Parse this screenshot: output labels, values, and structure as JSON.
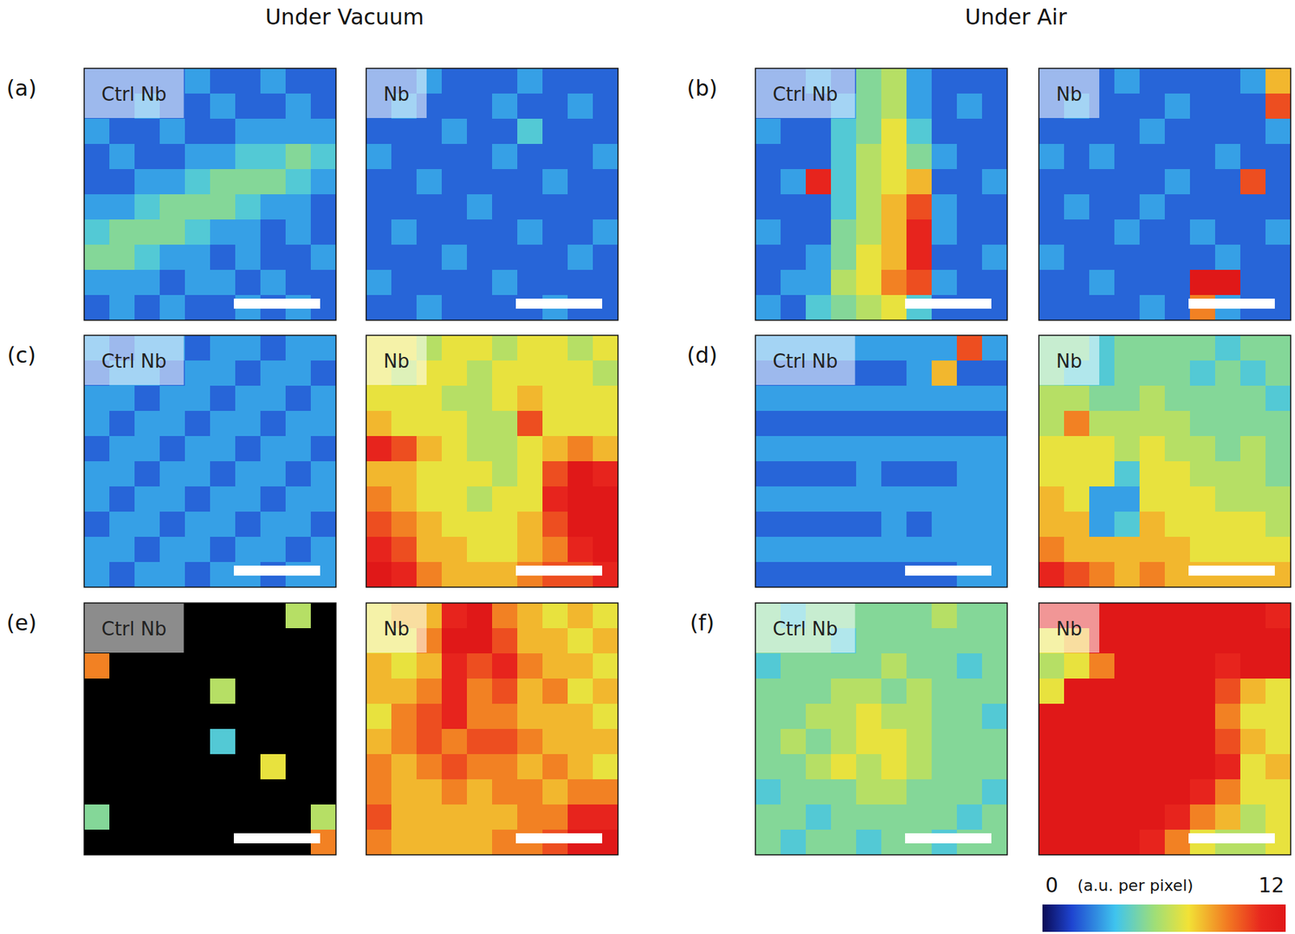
{
  "headings": [
    "Under Vacuum",
    "Under Air"
  ],
  "panel_labels": [
    "(a)",
    "(b)",
    "(c)",
    "(d)",
    "(e)",
    "(f)"
  ],
  "colorbar": {
    "range": [
      0,
      12
    ],
    "ticks": [
      0,
      12
    ],
    "label": "(a.u. per pixel)"
  },
  "chart_data": [
    {
      "type": "heatmap",
      "title": "Ctrl Nb",
      "tick_labels": false,
      "cells": [
        [
          2,
          2,
          2,
          2,
          3,
          2,
          2,
          3,
          2,
          2
        ],
        [
          2,
          2,
          3,
          2,
          2,
          3,
          2,
          2,
          3,
          2
        ],
        [
          3,
          2,
          2,
          3,
          2,
          2,
          3,
          3,
          3,
          3
        ],
        [
          2,
          3,
          2,
          2,
          3,
          3,
          4,
          4,
          5,
          4
        ],
        [
          2,
          2,
          3,
          3,
          4,
          5,
          5,
          5,
          4,
          3
        ],
        [
          3,
          3,
          4,
          5,
          5,
          5,
          4,
          3,
          3,
          2
        ],
        [
          4,
          5,
          5,
          5,
          4,
          3,
          3,
          2,
          3,
          2
        ],
        [
          5,
          5,
          4,
          3,
          3,
          2,
          3,
          2,
          2,
          3
        ],
        [
          3,
          3,
          3,
          2,
          3,
          3,
          2,
          3,
          2,
          2
        ],
        [
          2,
          3,
          2,
          3,
          2,
          2,
          3,
          2,
          3,
          2
        ]
      ]
    },
    {
      "type": "heatmap",
      "title": "Nb",
      "tick_labels": false,
      "cells": [
        [
          2,
          2,
          3,
          2,
          2,
          2,
          3,
          2,
          2,
          2
        ],
        [
          2,
          3,
          2,
          2,
          2,
          3,
          2,
          2,
          3,
          2
        ],
        [
          2,
          2,
          2,
          3,
          2,
          2,
          4,
          2,
          2,
          2
        ],
        [
          3,
          2,
          2,
          2,
          2,
          3,
          2,
          2,
          2,
          3
        ],
        [
          2,
          2,
          3,
          2,
          2,
          2,
          2,
          3,
          2,
          2
        ],
        [
          2,
          2,
          2,
          2,
          3,
          2,
          2,
          2,
          2,
          2
        ],
        [
          2,
          3,
          2,
          2,
          2,
          2,
          3,
          2,
          2,
          3
        ],
        [
          2,
          2,
          2,
          3,
          2,
          2,
          2,
          2,
          3,
          2
        ],
        [
          3,
          2,
          2,
          2,
          2,
          3,
          2,
          2,
          2,
          2
        ],
        [
          2,
          2,
          3,
          2,
          2,
          2,
          2,
          3,
          2,
          2
        ]
      ]
    },
    {
      "type": "heatmap",
      "title": "Ctrl Nb",
      "tick_labels": false,
      "cells": [
        [
          2,
          2,
          3,
          2,
          5,
          6,
          3,
          2,
          2,
          2
        ],
        [
          2,
          2,
          2,
          3,
          5,
          6,
          3,
          2,
          3,
          2
        ],
        [
          3,
          2,
          2,
          4,
          5,
          7,
          4,
          2,
          2,
          2
        ],
        [
          2,
          2,
          2,
          4,
          6,
          7,
          5,
          3,
          2,
          2
        ],
        [
          2,
          3,
          11,
          4,
          6,
          7,
          8,
          2,
          2,
          3
        ],
        [
          2,
          2,
          2,
          4,
          6,
          8,
          10,
          3,
          2,
          2
        ],
        [
          3,
          2,
          2,
          5,
          6,
          8,
          11,
          3,
          2,
          2
        ],
        [
          2,
          2,
          3,
          5,
          7,
          8,
          11,
          2,
          2,
          3
        ],
        [
          2,
          3,
          3,
          6,
          7,
          9,
          10,
          3,
          2,
          2
        ],
        [
          3,
          2,
          4,
          5,
          6,
          7,
          4,
          2,
          2,
          2
        ]
      ]
    },
    {
      "type": "heatmap",
      "title": "Nb",
      "tick_labels": false,
      "cells": [
        [
          2,
          2,
          2,
          3,
          2,
          2,
          2,
          2,
          3,
          8
        ],
        [
          2,
          3,
          2,
          2,
          2,
          3,
          2,
          2,
          2,
          10
        ],
        [
          2,
          2,
          2,
          2,
          3,
          2,
          2,
          2,
          2,
          3
        ],
        [
          3,
          2,
          3,
          2,
          2,
          2,
          2,
          3,
          2,
          2
        ],
        [
          2,
          2,
          2,
          2,
          2,
          3,
          2,
          2,
          10,
          2
        ],
        [
          2,
          3,
          2,
          2,
          3,
          2,
          2,
          2,
          2,
          2
        ],
        [
          2,
          2,
          2,
          3,
          2,
          2,
          3,
          2,
          2,
          3
        ],
        [
          3,
          2,
          2,
          2,
          2,
          2,
          2,
          3,
          2,
          2
        ],
        [
          2,
          2,
          3,
          2,
          2,
          2,
          12,
          12,
          2,
          2
        ],
        [
          2,
          2,
          2,
          2,
          3,
          2,
          9,
          3,
          2,
          2
        ]
      ]
    },
    {
      "type": "heatmap",
      "title": "Ctrl Nb",
      "tick_labels": false,
      "cells": [
        [
          3,
          2,
          3,
          3,
          2,
          3,
          3,
          2,
          3,
          3
        ],
        [
          2,
          3,
          3,
          2,
          3,
          3,
          2,
          3,
          3,
          2
        ],
        [
          3,
          3,
          2,
          3,
          3,
          2,
          3,
          3,
          2,
          3
        ],
        [
          3,
          2,
          3,
          3,
          2,
          3,
          3,
          2,
          3,
          3
        ],
        [
          2,
          3,
          3,
          2,
          3,
          3,
          2,
          3,
          3,
          2
        ],
        [
          3,
          3,
          2,
          3,
          3,
          2,
          3,
          3,
          2,
          3
        ],
        [
          3,
          2,
          3,
          3,
          2,
          3,
          3,
          2,
          3,
          3
        ],
        [
          2,
          3,
          3,
          2,
          3,
          3,
          2,
          3,
          3,
          2
        ],
        [
          3,
          3,
          2,
          3,
          3,
          2,
          3,
          3,
          2,
          3
        ],
        [
          3,
          2,
          3,
          3,
          2,
          3,
          3,
          2,
          3,
          3
        ]
      ]
    },
    {
      "type": "heatmap",
      "title": "Nb",
      "tick_labels": false,
      "cells": [
        [
          7,
          7,
          6,
          7,
          7,
          6,
          7,
          7,
          6,
          7
        ],
        [
          7,
          6,
          7,
          7,
          6,
          7,
          7,
          7,
          7,
          6
        ],
        [
          7,
          7,
          7,
          6,
          6,
          7,
          8,
          7,
          7,
          7
        ],
        [
          8,
          7,
          7,
          7,
          6,
          6,
          10,
          7,
          7,
          7
        ],
        [
          11,
          10,
          8,
          7,
          6,
          6,
          7,
          8,
          9,
          8
        ],
        [
          8,
          8,
          7,
          7,
          7,
          6,
          7,
          10,
          12,
          11
        ],
        [
          9,
          8,
          7,
          7,
          6,
          7,
          7,
          11,
          12,
          12
        ],
        [
          10,
          9,
          8,
          7,
          7,
          7,
          8,
          10,
          12,
          12
        ],
        [
          11,
          10,
          8,
          8,
          7,
          7,
          8,
          9,
          11,
          12
        ],
        [
          12,
          11,
          9,
          8,
          8,
          8,
          9,
          10,
          10,
          11
        ]
      ]
    },
    {
      "type": "heatmap",
      "title": "Ctrl Nb",
      "tick_labels": false,
      "cells": [
        [
          3,
          3,
          3,
          3,
          3,
          3,
          3,
          3,
          10,
          3
        ],
        [
          2,
          2,
          2,
          2,
          2,
          2,
          3,
          8,
          2,
          2
        ],
        [
          3,
          3,
          3,
          3,
          3,
          3,
          3,
          3,
          3,
          3
        ],
        [
          2,
          2,
          2,
          2,
          2,
          2,
          2,
          2,
          2,
          2
        ],
        [
          3,
          3,
          3,
          3,
          3,
          3,
          3,
          3,
          3,
          3
        ],
        [
          2,
          2,
          2,
          2,
          3,
          2,
          2,
          2,
          3,
          3
        ],
        [
          3,
          3,
          3,
          3,
          3,
          3,
          3,
          3,
          3,
          3
        ],
        [
          2,
          2,
          2,
          2,
          2,
          3,
          2,
          3,
          3,
          3
        ],
        [
          3,
          3,
          3,
          3,
          3,
          3,
          3,
          3,
          3,
          3
        ],
        [
          2,
          2,
          2,
          2,
          2,
          2,
          2,
          2,
          3,
          3
        ]
      ]
    },
    {
      "type": "heatmap",
      "title": "Nb",
      "tick_labels": false,
      "cells": [
        [
          5,
          5,
          4,
          5,
          5,
          5,
          5,
          4,
          5,
          5
        ],
        [
          5,
          4,
          4,
          5,
          5,
          5,
          4,
          5,
          4,
          5
        ],
        [
          6,
          6,
          5,
          5,
          6,
          5,
          5,
          5,
          5,
          4
        ],
        [
          6,
          9,
          6,
          6,
          6,
          6,
          5,
          5,
          5,
          5
        ],
        [
          7,
          7,
          7,
          6,
          7,
          6,
          6,
          5,
          6,
          5
        ],
        [
          7,
          7,
          7,
          4,
          7,
          7,
          6,
          6,
          6,
          5
        ],
        [
          8,
          7,
          3,
          3,
          7,
          7,
          7,
          6,
          6,
          6
        ],
        [
          8,
          8,
          3,
          4,
          8,
          7,
          7,
          7,
          7,
          6
        ],
        [
          9,
          8,
          8,
          8,
          8,
          8,
          7,
          7,
          7,
          7
        ],
        [
          11,
          10,
          9,
          8,
          9,
          8,
          8,
          8,
          8,
          8
        ]
      ]
    },
    {
      "type": "heatmap",
      "title": "Ctrl Nb",
      "tick_labels": false,
      "cells": [
        [
          0,
          0,
          0,
          0,
          0,
          0,
          0,
          0,
          6,
          0
        ],
        [
          0,
          0,
          0,
          0,
          0,
          0,
          0,
          0,
          0,
          0
        ],
        [
          9,
          0,
          0,
          0,
          0,
          0,
          0,
          0,
          0,
          0
        ],
        [
          0,
          0,
          0,
          0,
          0,
          6,
          0,
          0,
          0,
          0
        ],
        [
          0,
          0,
          0,
          0,
          0,
          0,
          0,
          0,
          0,
          0
        ],
        [
          0,
          0,
          0,
          0,
          0,
          4,
          0,
          0,
          0,
          0
        ],
        [
          0,
          0,
          0,
          0,
          0,
          0,
          0,
          7,
          0,
          0
        ],
        [
          0,
          0,
          0,
          0,
          0,
          0,
          0,
          0,
          0,
          0
        ],
        [
          5,
          0,
          0,
          0,
          0,
          0,
          0,
          0,
          0,
          6
        ],
        [
          0,
          0,
          0,
          0,
          0,
          0,
          0,
          0,
          0,
          9
        ]
      ]
    },
    {
      "type": "heatmap",
      "title": "Nb",
      "tick_labels": false,
      "cells": [
        [
          7,
          8,
          8,
          11,
          12,
          9,
          8,
          7,
          8,
          7
        ],
        [
          7,
          7,
          9,
          12,
          12,
          10,
          8,
          8,
          7,
          8
        ],
        [
          8,
          7,
          8,
          11,
          10,
          11,
          9,
          8,
          8,
          7
        ],
        [
          8,
          8,
          9,
          11,
          9,
          10,
          8,
          9,
          7,
          8
        ],
        [
          7,
          9,
          10,
          11,
          9,
          9,
          8,
          8,
          8,
          7
        ],
        [
          8,
          9,
          10,
          9,
          10,
          10,
          9,
          8,
          8,
          8
        ],
        [
          9,
          8,
          9,
          10,
          9,
          9,
          8,
          9,
          8,
          7
        ],
        [
          9,
          8,
          8,
          9,
          8,
          9,
          9,
          8,
          9,
          9
        ],
        [
          10,
          8,
          8,
          8,
          8,
          8,
          9,
          9,
          11,
          11
        ],
        [
          9,
          8,
          8,
          8,
          8,
          9,
          9,
          10,
          12,
          12
        ]
      ]
    },
    {
      "type": "heatmap",
      "title": "Ctrl Nb",
      "tick_labels": false,
      "cells": [
        [
          5,
          4,
          5,
          5,
          5,
          5,
          5,
          6,
          5,
          5
        ],
        [
          5,
          5,
          5,
          4,
          5,
          5,
          5,
          5,
          5,
          5
        ],
        [
          4,
          5,
          5,
          5,
          5,
          6,
          5,
          5,
          4,
          5
        ],
        [
          5,
          5,
          5,
          6,
          6,
          5,
          6,
          5,
          5,
          5
        ],
        [
          5,
          5,
          6,
          6,
          7,
          6,
          6,
          5,
          5,
          4
        ],
        [
          5,
          6,
          5,
          6,
          7,
          7,
          6,
          5,
          5,
          5
        ],
        [
          5,
          5,
          6,
          7,
          6,
          7,
          6,
          5,
          5,
          5
        ],
        [
          4,
          5,
          5,
          5,
          6,
          6,
          5,
          5,
          5,
          4
        ],
        [
          5,
          5,
          4,
          5,
          5,
          5,
          5,
          5,
          4,
          5
        ],
        [
          5,
          4,
          5,
          5,
          4,
          5,
          5,
          4,
          5,
          5
        ]
      ]
    },
    {
      "type": "heatmap",
      "title": "Nb",
      "tick_labels": false,
      "cells": [
        [
          12,
          12,
          12,
          12,
          12,
          12,
          12,
          12,
          12,
          11
        ],
        [
          7,
          8,
          12,
          12,
          12,
          12,
          12,
          12,
          12,
          12
        ],
        [
          6,
          7,
          9,
          12,
          12,
          12,
          12,
          11,
          12,
          12
        ],
        [
          7,
          12,
          12,
          12,
          12,
          12,
          12,
          10,
          8,
          7
        ],
        [
          12,
          12,
          12,
          12,
          12,
          12,
          12,
          9,
          7,
          7
        ],
        [
          12,
          12,
          12,
          12,
          12,
          12,
          12,
          10,
          8,
          7
        ],
        [
          12,
          12,
          12,
          12,
          12,
          12,
          12,
          11,
          7,
          8
        ],
        [
          12,
          12,
          12,
          12,
          12,
          12,
          11,
          9,
          7,
          7
        ],
        [
          12,
          12,
          12,
          12,
          12,
          11,
          9,
          8,
          6,
          7
        ],
        [
          12,
          12,
          12,
          12,
          11,
          9,
          7,
          6,
          6,
          7
        ]
      ]
    }
  ]
}
